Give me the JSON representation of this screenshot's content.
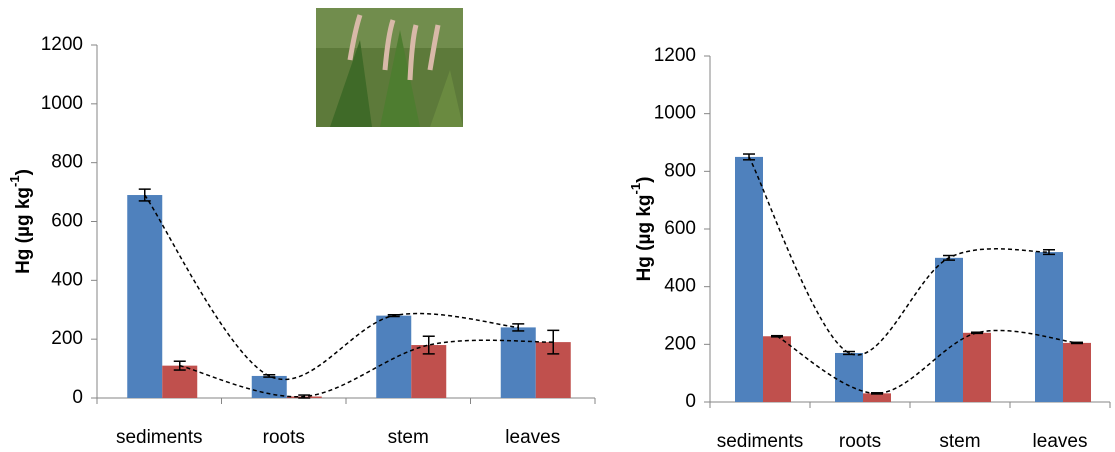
{
  "chart_data": [
    {
      "type": "bar",
      "categories": [
        "sediments",
        "roots",
        "stem",
        "leaves"
      ],
      "series": [
        {
          "color": "#4f81bd",
          "values": [
            690,
            75,
            280,
            240
          ],
          "errors": [
            20,
            4,
            3,
            12
          ]
        },
        {
          "color": "#c0504d",
          "values": [
            110,
            5,
            180,
            190
          ],
          "errors": [
            15,
            5,
            30,
            40
          ]
        }
      ],
      "ylim": [
        0,
        1200
      ],
      "yticks": [
        0,
        200,
        400,
        600,
        800,
        1000,
        1200
      ],
      "y_label": "Hg (µg kg",
      "y_label_sup": "-1",
      "y_label_end": ")",
      "trend_lines": true
    },
    {
      "type": "bar",
      "categories": [
        "sediments",
        "roots",
        "stem",
        "leaves"
      ],
      "series": [
        {
          "color": "#4f81bd",
          "values": [
            850,
            170,
            500,
            520
          ],
          "errors": [
            10,
            5,
            8,
            8
          ]
        },
        {
          "color": "#c0504d",
          "values": [
            228,
            30,
            240,
            205
          ],
          "errors": [
            2,
            2,
            2,
            2
          ]
        }
      ],
      "ylim": [
        0,
        1200
      ],
      "yticks": [
        0,
        200,
        400,
        600,
        800,
        1000,
        1200
      ],
      "y_label": "Hg (µg kg",
      "y_label_sup": "-1",
      "y_label_end": ")",
      "trend_lines": true
    }
  ]
}
